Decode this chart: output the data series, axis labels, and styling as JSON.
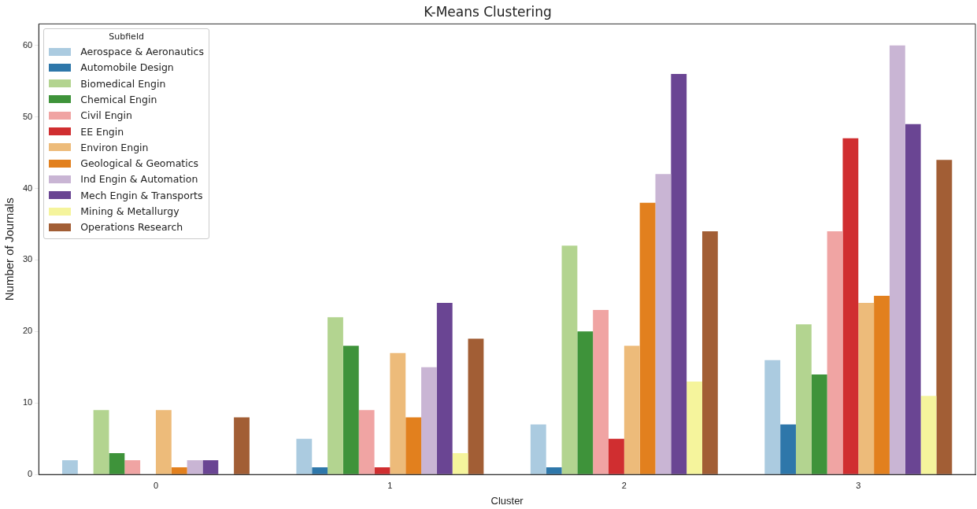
{
  "chart_data": {
    "type": "bar",
    "title": "K-Means Clustering",
    "xlabel": "Cluster",
    "ylabel": "Number of Journals",
    "legend_title": "Subfield",
    "legend": "top left",
    "grid": false,
    "categories": [
      "0",
      "1",
      "2",
      "3"
    ],
    "ylim": [
      0,
      63
    ],
    "yticks": [
      0,
      10,
      20,
      30,
      40,
      50,
      60
    ],
    "series": [
      {
        "name": "Aerospace & Aeronautics",
        "color": "#abcbe0",
        "values": [
          2,
          5,
          7,
          16
        ]
      },
      {
        "name": "Automobile Design",
        "color": "#2e77aa",
        "values": [
          0,
          1,
          1,
          7
        ]
      },
      {
        "name": "Biomedical Engin",
        "color": "#b3d490",
        "values": [
          9,
          22,
          32,
          21
        ]
      },
      {
        "name": "Chemical Engin",
        "color": "#3e933a",
        "values": [
          3,
          18,
          20,
          14
        ]
      },
      {
        "name": "Civil Engin",
        "color": "#f0a4a3",
        "values": [
          2,
          9,
          23,
          34
        ]
      },
      {
        "name": "EE Engin",
        "color": "#d02e30",
        "values": [
          0,
          1,
          5,
          47
        ]
      },
      {
        "name": "Environ Engin",
        "color": "#edbb7a",
        "values": [
          9,
          17,
          18,
          24
        ]
      },
      {
        "name": "Geological & Geomatics",
        "color": "#e2801e",
        "values": [
          1,
          8,
          38,
          25
        ]
      },
      {
        "name": "Ind Engin & Automation",
        "color": "#c9b5d4",
        "values": [
          2,
          15,
          42,
          60
        ]
      },
      {
        "name": "Mech Engin & Transports",
        "color": "#6a4593",
        "values": [
          2,
          24,
          56,
          49
        ]
      },
      {
        "name": "Mining & Metallurgy",
        "color": "#f5f49c",
        "values": [
          0,
          3,
          13,
          11
        ]
      },
      {
        "name": "Operations Research",
        "color": "#a25e35",
        "values": [
          8,
          19,
          34,
          44
        ]
      }
    ]
  }
}
